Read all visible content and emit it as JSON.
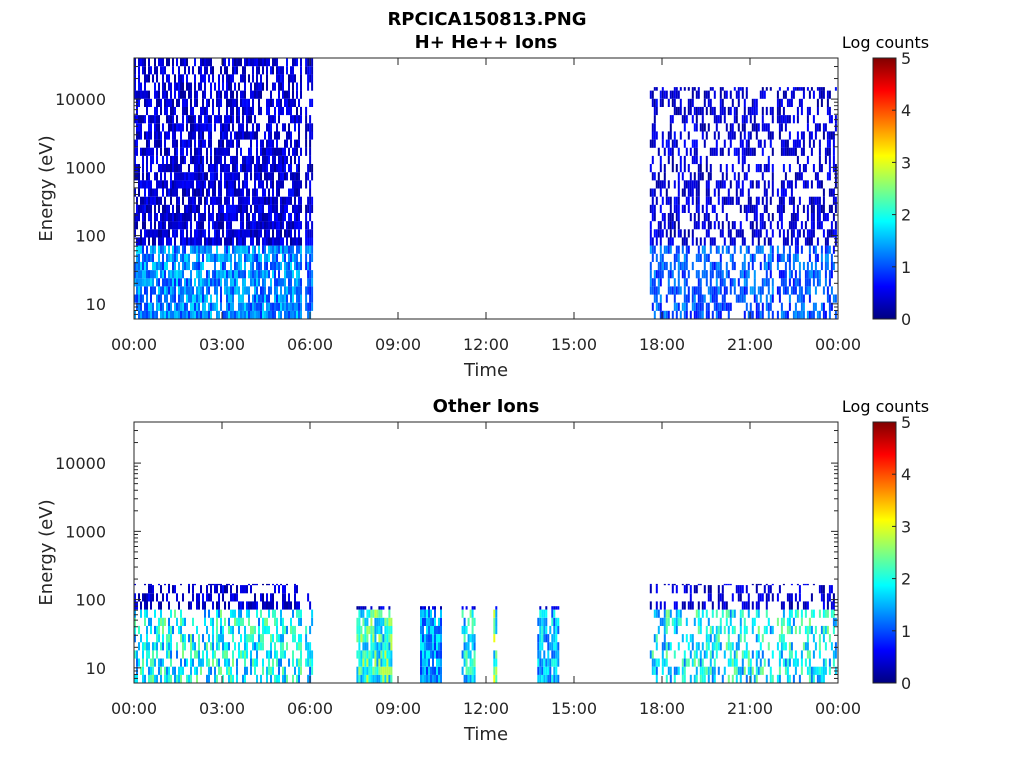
{
  "figure": {
    "title": "RPCICA150813.PNG"
  },
  "colormap": [
    "#000080",
    "#0000ff",
    "#00ffff",
    "#ffff00",
    "#ff0000",
    "#800000"
  ],
  "chart_data": [
    {
      "type": "heatmap",
      "title": "H+ He++ Ions",
      "xlabel": "Time",
      "ylabel": "Energy (eV)",
      "ylog": true,
      "xlim": [
        "00:00",
        "24:00"
      ],
      "ylim": [
        6,
        40000
      ],
      "x_ticks": [
        "00:00",
        "03:00",
        "06:00",
        "09:00",
        "12:00",
        "15:00",
        "18:00",
        "21:00",
        "00:00"
      ],
      "y_ticks": [
        10,
        100,
        1000,
        10000
      ],
      "y_tick_labels": [
        "10",
        "100",
        "1000",
        "10000"
      ],
      "colorbar": {
        "label": "Log counts",
        "min": 0,
        "max": 5,
        "ticks": [
          "0",
          "1",
          "2",
          "3",
          "4",
          "5"
        ]
      },
      "data_intervals": [
        {
          "start": "00:00",
          "end": "05:40",
          "emax": 40000,
          "density": 0.85,
          "low_energy_level": 1.6
        },
        {
          "start": "05:50",
          "end": "06:05",
          "emax": 40000,
          "density": 0.85,
          "low_energy_level": 1.4
        },
        {
          "start": "17:35",
          "end": "21:45",
          "emax": 15000,
          "density": 0.55,
          "low_energy_level": 1.3
        },
        {
          "start": "21:55",
          "end": "23:55",
          "emax": 15000,
          "density": 0.55,
          "low_energy_level": 1.3
        }
      ]
    },
    {
      "type": "heatmap",
      "title": "Other Ions",
      "xlabel": "Time",
      "ylabel": "Energy (eV)",
      "ylog": true,
      "xlim": [
        "00:00",
        "24:00"
      ],
      "ylim": [
        6,
        40000
      ],
      "x_ticks": [
        "00:00",
        "03:00",
        "06:00",
        "09:00",
        "12:00",
        "15:00",
        "18:00",
        "21:00",
        "00:00"
      ],
      "y_ticks": [
        10,
        100,
        1000,
        10000
      ],
      "y_tick_labels": [
        "10",
        "100",
        "1000",
        "10000"
      ],
      "colorbar": {
        "label": "Log counts",
        "min": 0,
        "max": 5,
        "ticks": [
          "0",
          "1",
          "2",
          "3",
          "4",
          "5"
        ]
      },
      "data_intervals": [
        {
          "start": "00:00",
          "end": "05:40",
          "emax": 170,
          "density": 0.55,
          "low_energy_level": 2.3
        },
        {
          "start": "05:50",
          "end": "06:05",
          "emax": 170,
          "density": 0.55,
          "low_energy_level": 2.0
        },
        {
          "start": "07:35",
          "end": "08:45",
          "emax": 80,
          "density": 1.0,
          "low_energy_level": 2.6
        },
        {
          "start": "09:45",
          "end": "10:30",
          "emax": 80,
          "density": 1.0,
          "low_energy_level": 1.7
        },
        {
          "start": "11:10",
          "end": "11:35",
          "emax": 80,
          "density": 0.9,
          "low_energy_level": 2.3
        },
        {
          "start": "12:15",
          "end": "12:20",
          "emax": 80,
          "density": 1.0,
          "low_energy_level": 2.8
        },
        {
          "start": "13:45",
          "end": "14:30",
          "emax": 80,
          "density": 1.0,
          "low_energy_level": 1.9
        },
        {
          "start": "17:35",
          "end": "21:45",
          "emax": 170,
          "density": 0.5,
          "low_energy_level": 2.3
        },
        {
          "start": "21:55",
          "end": "23:55",
          "emax": 170,
          "density": 0.5,
          "low_energy_level": 2.3
        }
      ]
    }
  ]
}
